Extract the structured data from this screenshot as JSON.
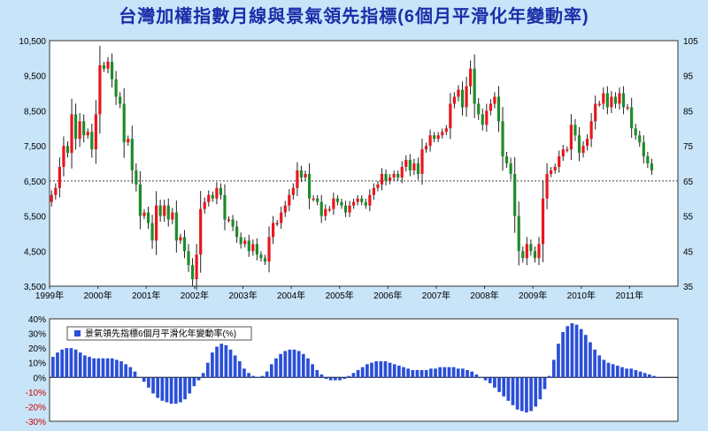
{
  "title": "台灣加權指數月線與景氣領先指標(6個月平滑化年變動率)",
  "colors": {
    "background": "#c8e4f8",
    "up": "#e8161c",
    "down": "#1c8c2a",
    "bar": "#2a4fd8",
    "title": "#1a2ea8",
    "negative_tick": "#cc0000"
  },
  "chart_data": [
    {
      "type": "candlestick",
      "ylim_left": [
        3500,
        10500
      ],
      "ylim_right": [
        35,
        105
      ],
      "left_ticks": [
        "10,500",
        "9,500",
        "8,500",
        "7,500",
        "6,500",
        "5,500",
        "4,500",
        "3,500"
      ],
      "right_ticks": [
        "105",
        "95",
        "85",
        "75",
        "65",
        "55",
        "45",
        "35"
      ],
      "x_ticks": [
        "1999年",
        "2000年",
        "2001年",
        "2002年",
        "2003年",
        "2004年",
        "2005年",
        "2006年",
        "2007年",
        "2008年",
        "2009年",
        "2010年",
        "2011年"
      ],
      "reference_line": 6500,
      "close": [
        6100,
        6300,
        6900,
        7500,
        7300,
        8400,
        7700,
        8200,
        7800,
        7900,
        7400,
        8400,
        9800,
        9700,
        9900,
        9400,
        8900,
        8700,
        7600,
        7700,
        6800,
        6400,
        5500,
        5600,
        5300,
        4800,
        5800,
        5500,
        5800,
        5400,
        5600,
        4800,
        4900,
        4500,
        4100,
        3700,
        4400,
        5700,
        5900,
        6100,
        6000,
        6300,
        6100,
        5400,
        5400,
        5200,
        4900,
        4700,
        4800,
        4500,
        4700,
        4400,
        4300,
        4200,
        4900,
        5300,
        5300,
        5600,
        5800,
        6100,
        6300,
        6800,
        6600,
        6700,
        6000,
        6000,
        5900,
        5500,
        5700,
        5700,
        6000,
        5900,
        5800,
        5600,
        5800,
        5900,
        6000,
        5900,
        5800,
        6100,
        6300,
        6400,
        6700,
        6500,
        6600,
        6700,
        6600,
        6900,
        7100,
        6800,
        7000,
        6700,
        7400,
        7500,
        7800,
        7700,
        7800,
        7900,
        8000,
        8700,
        8900,
        9100,
        8600,
        9200,
        9700,
        8700,
        8400,
        8100,
        8500,
        8700,
        8900,
        8200,
        7200,
        7000,
        6700,
        5500,
        4500,
        4300,
        4700,
        4500,
        4300,
        4700,
        6000,
        6700,
        6800,
        6900,
        7200,
        7400,
        7400,
        8100,
        7800,
        7300,
        7500,
        7700,
        8200,
        8700,
        8700,
        9000,
        8600,
        8900,
        8700,
        9000,
        8600,
        8600,
        8000,
        7800,
        7600,
        7200,
        7000,
        6800
      ]
    },
    {
      "type": "bar",
      "series": [
        {
          "name": "景氣領先指標6個月平滑化年變動率(%)"
        }
      ],
      "ylim": [
        -30,
        40
      ],
      "y_ticks": [
        "40%",
        "30%",
        "20%",
        "10%",
        "0%",
        "-10%",
        "-20%",
        "-30%"
      ],
      "values": [
        14,
        17,
        19,
        20,
        20,
        19,
        17,
        15,
        14,
        13,
        13,
        13,
        13,
        13,
        12,
        11,
        9,
        7,
        4,
        0,
        -3,
        -7,
        -11,
        -14,
        -16,
        -17,
        -18,
        -18,
        -17,
        -15,
        -11,
        -6,
        -2,
        3,
        10,
        17,
        21,
        23,
        22,
        19,
        15,
        11,
        6,
        3,
        1,
        0,
        1,
        4,
        9,
        13,
        16,
        18,
        19,
        19,
        18,
        16,
        13,
        9,
        5,
        2,
        -1,
        -2,
        -2,
        -2,
        -1,
        1,
        3,
        5,
        7,
        9,
        10,
        11,
        11,
        11,
        10,
        9,
        8,
        7,
        6,
        5,
        5,
        5,
        5,
        6,
        6,
        7,
        7,
        7,
        7,
        6,
        6,
        5,
        4,
        2,
        0,
        -2,
        -4,
        -7,
        -10,
        -13,
        -16,
        -19,
        -22,
        -23,
        -24,
        -23,
        -20,
        -15,
        -8,
        1,
        12,
        23,
        31,
        35,
        37,
        36,
        33,
        29,
        24,
        19,
        15,
        12,
        10,
        9,
        8,
        7,
        6,
        6,
        5,
        4,
        3,
        2,
        1,
        0,
        0
      ]
    }
  ]
}
